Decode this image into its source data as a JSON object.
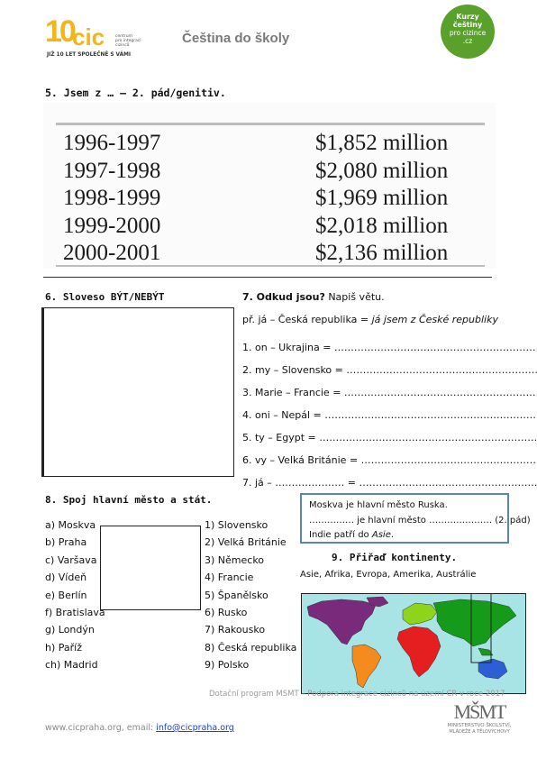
{
  "header": {
    "logo_number": "10",
    "logo_letters": "cic",
    "logo_tag_lines": [
      "centrum",
      "pro integraci",
      "cizinců"
    ],
    "logo_caption": "JIŽ 10 LET SPOLEČNĚ S VÁMI",
    "title": "Čeština do školy",
    "badge_lines": [
      "Kurzy",
      "češtiny",
      "pro cizince",
      ".cz"
    ]
  },
  "section5": {
    "heading": "5. Jsem z … – 2. pád/genitiv.",
    "table": [
      {
        "year": "1996-1997",
        "amount": "$1,852 million"
      },
      {
        "year": "1997-1998",
        "amount": "$2,080 million"
      },
      {
        "year": "1998-1999",
        "amount": "$1,969 million"
      },
      {
        "year": "1999-2000",
        "amount": "$2,018 million"
      },
      {
        "year": "2000-2001",
        "amount": "$2,136 million"
      }
    ]
  },
  "section6": {
    "heading": "6. Sloveso BÝT/NEBÝT"
  },
  "section7": {
    "heading_bold": "7. Odkud jsou?",
    "heading_rest": " Napiš větu.",
    "example_prefix": "př. já – Česká republika = ",
    "example_answer": "já jsem z České republiky",
    "lines": [
      "1. on – Ukrajina = ………………………………………………………",
      "2. my – Slovensko = ………………………………………………….",
      "3. Marie – Francie = …………………………………………………….",
      "4. oni – Nepál = ……………………………………………………………",
      "5. ty – Egypt = …………………………………………………………..",
      "6. vy – Velká Británie = ……………………………………………….",
      "7. já – ………………… = ………………………………………………….."
    ]
  },
  "section8": {
    "heading": "8. Spoj hlavní město a stát.",
    "cities": [
      "a) Moskva",
      "b) Praha",
      "c) Varšava",
      "d) Vídeň",
      "e) Berlín",
      "f) Bratislava",
      "g) Londýn",
      "h) Paříž",
      "ch) Madrid"
    ],
    "states": [
      "1) Slovensko",
      "2) Velká Británie",
      "3) Německo",
      "4) Francie",
      "5) Španělsko",
      "6) Rusko",
      "7) Rakousko",
      "8) Česká republika",
      "9) Polsko"
    ]
  },
  "infobox": {
    "line1": "Moskva je hlavní město Ruska.",
    "line2": "…………… je hlavní město ………………… (2. pád)",
    "line3_prefix": "Indie patří do ",
    "line3_word": "Asie",
    "line3_suffix": "."
  },
  "section9": {
    "heading": "9. Přiřaď kontinenty.",
    "continents": "Asie, Afrika, Evropa, Amerika, Austrálie"
  },
  "footer": {
    "program": "Dotační program MŠMT – Podpora integrace cizinců na území ČR v roce 2017",
    "web": "www.cicpraha.org, email: ",
    "email": "info@cicpraha.org",
    "ministry_lines": [
      "MINISTERSTVO ŠKOLSTVÍ,",
      "MLÁDEŽE A TĚLOVÝCHOVY"
    ]
  },
  "colors": {
    "logo_yellow": "#f2b51c",
    "badge_green": "#5aa12c",
    "map_ocean": "#a8e4e6",
    "north_america": "#7a2a7a",
    "south_america": "#f58a1f",
    "europe": "#8fd41c",
    "africa": "#e51f1f",
    "asia": "#169a1a",
    "australia": "#2c5fd6",
    "infobox_border": "#5b87ad"
  }
}
